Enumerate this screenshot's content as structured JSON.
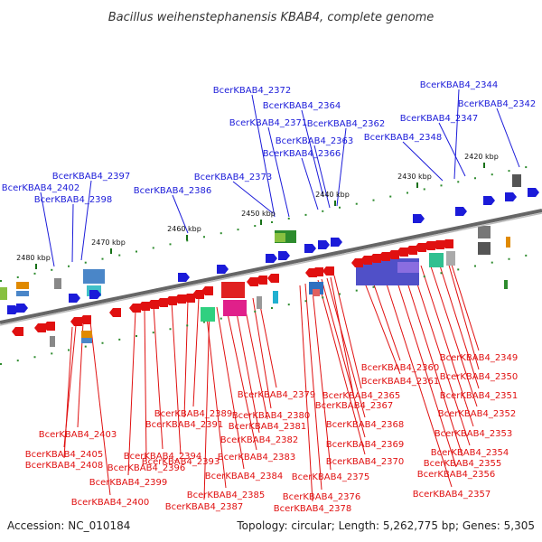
{
  "title": "Bacillus weihenstephanensis KBAB4, complete genome",
  "footer": {
    "accession": "Accession: NC_010184",
    "info": "Topology: circular; Length: 5,262,775 bp; Genes: 5,305"
  },
  "colors": {
    "forward": "#1b1bd9",
    "reverse": "#e01010",
    "backbone": "#666666",
    "tick": "#2e8b2e"
  },
  "scale_ticks": [
    "2420 kbp",
    "2430 kbp",
    "2440 kbp",
    "2450 kbp",
    "2460 kbp",
    "2470 kbp",
    "2480 kbp"
  ],
  "top_labels": [
    "BcerKBAB4_2344",
    "BcerKBAB4_2342",
    "BcerKBAB4_2347",
    "BcerKBAB4_2348",
    "BcerKBAB4_2372",
    "BcerKBAB4_2364",
    "BcerKBAB4_2371",
    "BcerKBAB4_2362",
    "BcerKBAB4_2363",
    "BcerKBAB4_2366",
    "BcerKBAB4_2397",
    "BcerKBAB4_2402",
    "BcerKBAB4_2373",
    "BcerKBAB4_2386",
    "BcerKBAB4_2398"
  ],
  "bottom_labels": [
    "BcerKBAB4_2349",
    "BcerKBAB4_2360",
    "BcerKBAB4_2350",
    "BcerKBAB4_2361",
    "BcerKBAB4_2351",
    "BcerKBAB4_2379",
    "BcerKBAB4_2365",
    "BcerKBAB4_2367",
    "BcerKBAB4_2352",
    "BcerKBAB4_2389",
    "BcerKBAB4_2380",
    "BcerKBAB4_2391",
    "BcerKBAB4_2381",
    "BcerKBAB4_2368",
    "BcerKBAB4_2353",
    "BcerKBAB4_2403",
    "BcerKBAB4_2382",
    "BcerKBAB4_2369",
    "BcerKBAB4_2354",
    "BcerKBAB4_2405",
    "BcerKBAB4_2394",
    "BcerKBAB4_2393",
    "BcerKBAB4_2383",
    "BcerKBAB4_2355",
    "BcerKBAB4_2408",
    "BcerKBAB4_2396",
    "BcerKBAB4_2370",
    "BcerKBAB4_2356",
    "BcerKBAB4_2384",
    "BcerKBAB4_2375",
    "BcerKBAB4_2399",
    "BcerKBAB4_2357",
    "BcerKBAB4_2385",
    "BcerKBAB4_2376",
    "BcerKBAB4_2387",
    "BcerKBAB4_2400",
    "BcerKBAB4_2378"
  ]
}
